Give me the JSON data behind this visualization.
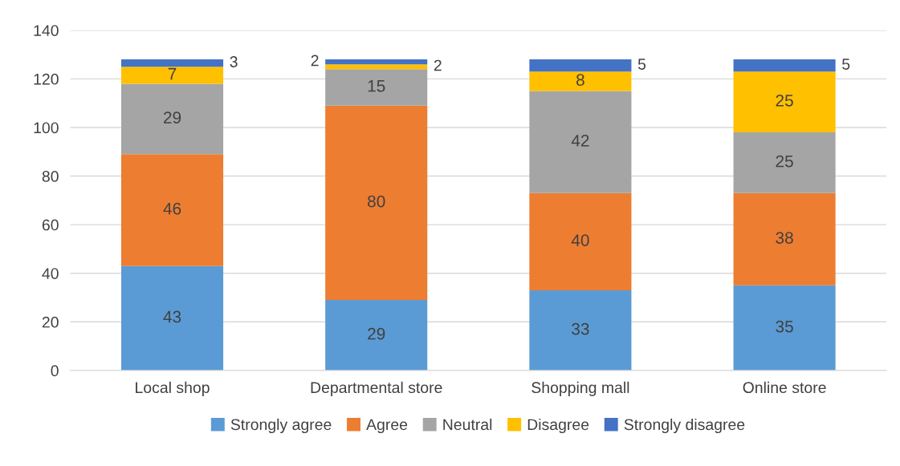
{
  "chart_data": {
    "type": "bar",
    "stacked": true,
    "categories": [
      "Local shop",
      "Departmental store",
      "Shopping mall",
      "Online store"
    ],
    "series": [
      {
        "name": "Strongly agree",
        "color": "#5b9bd5",
        "values": [
          43,
          29,
          33,
          35
        ]
      },
      {
        "name": "Agree",
        "color": "#ed7d31",
        "values": [
          46,
          80,
          40,
          38
        ]
      },
      {
        "name": "Neutral",
        "color": "#a5a5a5",
        "values": [
          29,
          15,
          42,
          25
        ]
      },
      {
        "name": "Disagree",
        "color": "#ffc000",
        "values": [
          7,
          2,
          8,
          25
        ]
      },
      {
        "name": "Strongly disagree",
        "color": "#4472c4",
        "values": [
          3,
          2,
          5,
          5
        ]
      }
    ],
    "ylim": [
      0,
      140
    ],
    "yticks": [
      0,
      20,
      40,
      60,
      80,
      100,
      120,
      140
    ],
    "grid": "y",
    "legend": "bottom",
    "data_labels": true
  }
}
